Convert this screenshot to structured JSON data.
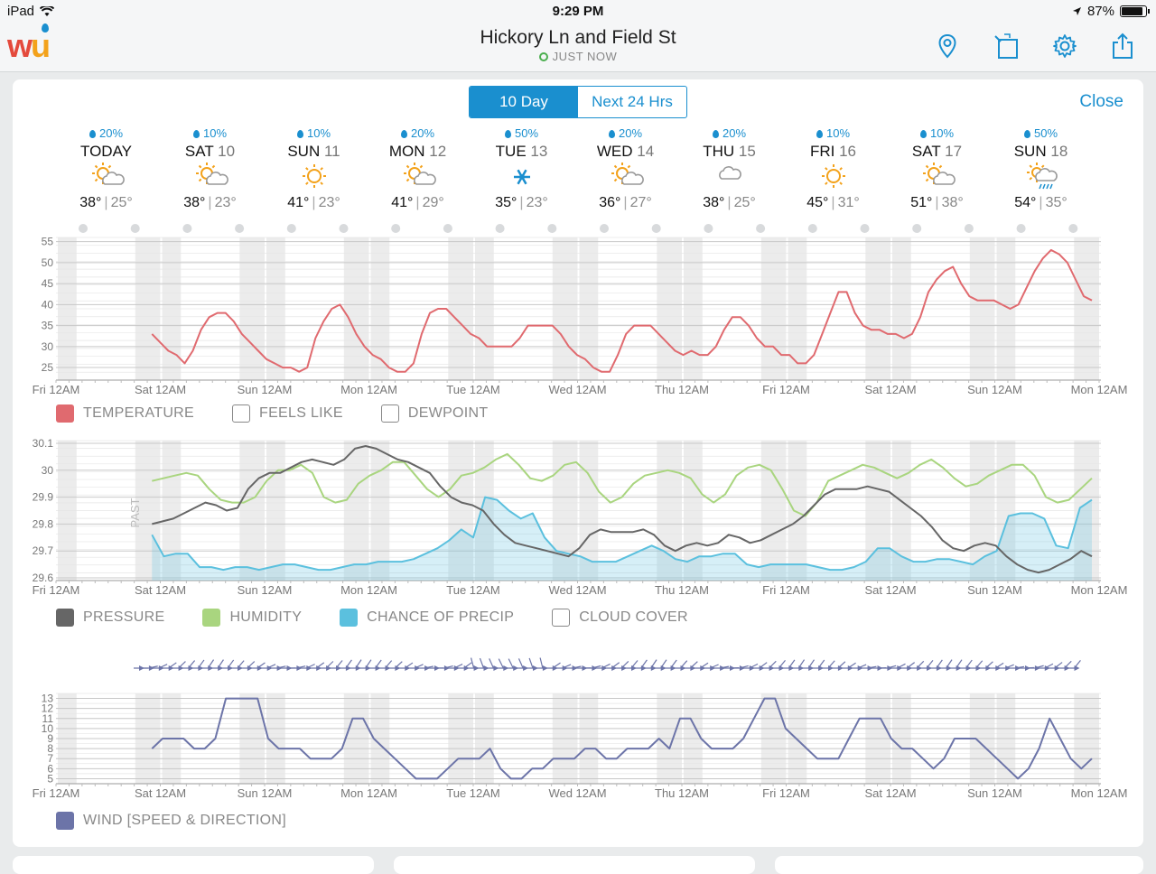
{
  "status": {
    "device": "iPad",
    "time": "9:29 PM",
    "battery": "87%",
    "battery_level": 0.87
  },
  "header": {
    "title": "Hickory Ln and Field St",
    "subtitle": "JUST NOW"
  },
  "toolbar": {
    "icons": [
      "location-pin-icon",
      "rotate-screen-icon",
      "gear-icon",
      "share-icon"
    ]
  },
  "tabs": [
    {
      "label": "10 Day",
      "active": true
    },
    {
      "label": "Next 24 Hrs",
      "active": false
    }
  ],
  "close_label": "Close",
  "forecast": [
    {
      "precip": "20%",
      "name": "TODAY",
      "num": "",
      "icon": "partly-sunny",
      "hi": "38°",
      "lo": "25°"
    },
    {
      "precip": "10%",
      "name": "SAT",
      "num": "10",
      "icon": "partly-sunny",
      "hi": "38°",
      "lo": "23°"
    },
    {
      "precip": "10%",
      "name": "SUN",
      "num": "11",
      "icon": "sunny",
      "hi": "41°",
      "lo": "23°"
    },
    {
      "precip": "20%",
      "name": "MON",
      "num": "12",
      "icon": "partly-sunny",
      "hi": "41°",
      "lo": "29°"
    },
    {
      "precip": "50%",
      "name": "TUE",
      "num": "13",
      "icon": "snow",
      "hi": "35°",
      "lo": "23°"
    },
    {
      "precip": "20%",
      "name": "WED",
      "num": "14",
      "icon": "partly-sunny",
      "hi": "36°",
      "lo": "27°"
    },
    {
      "precip": "20%",
      "name": "THU",
      "num": "15",
      "icon": "cloudy",
      "hi": "38°",
      "lo": "25°"
    },
    {
      "precip": "10%",
      "name": "FRI",
      "num": "16",
      "icon": "sunny",
      "hi": "45°",
      "lo": "31°"
    },
    {
      "precip": "10%",
      "name": "SAT",
      "num": "17",
      "icon": "partly-sunny",
      "hi": "51°",
      "lo": "38°"
    },
    {
      "precip": "50%",
      "name": "SUN",
      "num": "18",
      "icon": "chance-rain",
      "hi": "54°",
      "lo": "35°"
    }
  ],
  "x_labels": [
    "Fri 12AM",
    "Sat 12AM",
    "Sun 12AM",
    "Mon 12AM",
    "Tue 12AM",
    "Wed 12AM",
    "Thu 12AM",
    "Fri 12AM",
    "Sat 12AM",
    "Sun 12AM",
    "Mon 12AM"
  ],
  "past_label": "PAST",
  "colors": {
    "accent": "#1a8fcf",
    "temperature": "#e06a6f",
    "pressure": "#666666",
    "humidity": "#a9d57f",
    "precip": "#5bc0de",
    "wind": "#6c74a8"
  },
  "legends": {
    "temp": [
      {
        "label": "TEMPERATURE",
        "checked": true,
        "color": "#e06a6f"
      },
      {
        "label": "FEELS LIKE",
        "checked": false
      },
      {
        "label": "DEWPOINT",
        "checked": false
      }
    ],
    "atmos": [
      {
        "label": "PRESSURE",
        "checked": true,
        "color": "#666666"
      },
      {
        "label": "HUMIDITY",
        "checked": true,
        "color": "#a9d57f"
      },
      {
        "label": "CHANCE OF PRECIP",
        "checked": true,
        "color": "#5bc0de"
      },
      {
        "label": "CLOUD COVER",
        "checked": false
      }
    ],
    "wind": [
      {
        "label": "WIND [SPEED & DIRECTION]",
        "checked": true,
        "color": "#6c74a8"
      }
    ]
  },
  "chart_data": [
    {
      "type": "line",
      "yticks": [
        25,
        30,
        35,
        40,
        45,
        50,
        55
      ],
      "ylim": [
        22,
        56
      ],
      "x_start": "Fri 12AM",
      "series": [
        {
          "name": "TEMPERATURE",
          "color": "#e06a6f",
          "values": [
            33,
            31,
            29,
            28,
            26,
            29,
            34,
            37,
            38,
            38,
            36,
            33,
            31,
            29,
            27,
            26,
            25,
            25,
            24,
            25,
            32,
            36,
            39,
            40,
            37,
            33,
            30,
            28,
            27,
            25,
            24,
            24,
            26,
            33,
            38,
            39,
            39,
            37,
            35,
            33,
            32,
            30,
            30,
            30,
            30,
            32,
            35,
            35,
            35,
            35,
            33,
            30,
            28,
            27,
            25,
            24,
            24,
            28,
            33,
            35,
            35,
            35,
            33,
            31,
            29,
            28,
            29,
            28,
            28,
            30,
            34,
            37,
            37,
            35,
            32,
            30,
            30,
            28,
            28,
            26,
            26,
            28,
            33,
            38,
            43,
            43,
            38,
            35,
            34,
            34,
            33,
            33,
            32,
            33,
            37,
            43,
            46,
            48,
            49,
            45,
            42,
            41,
            41,
            41,
            40,
            39,
            40,
            44,
            48,
            51,
            53,
            52,
            50,
            46,
            42,
            41
          ]
        }
      ]
    },
    {
      "type": "line",
      "yticks": [
        29.6,
        29.7,
        29.8,
        29.9,
        30,
        30.1
      ],
      "ylim": [
        29.59,
        30.11
      ],
      "series": [
        {
          "name": "PRESSURE",
          "color": "#666666",
          "values": [
            29.8,
            29.81,
            29.82,
            29.84,
            29.86,
            29.88,
            29.87,
            29.85,
            29.86,
            29.93,
            29.97,
            29.99,
            29.99,
            30.01,
            30.03,
            30.04,
            30.03,
            30.02,
            30.04,
            30.08,
            30.09,
            30.08,
            30.06,
            30.04,
            30.03,
            30.01,
            29.99,
            29.94,
            29.9,
            29.88,
            29.87,
            29.85,
            29.8,
            29.76,
            29.73,
            29.72,
            29.71,
            29.7,
            29.69,
            29.68,
            29.71,
            29.76,
            29.78,
            29.77,
            29.77,
            29.77,
            29.78,
            29.76,
            29.72,
            29.7,
            29.72,
            29.73,
            29.72,
            29.73,
            29.76,
            29.75,
            29.73,
            29.74,
            29.76,
            29.78,
            29.8,
            29.83,
            29.87,
            29.91,
            29.93,
            29.93,
            29.93,
            29.94,
            29.93,
            29.92,
            29.89,
            29.86,
            29.83,
            29.79,
            29.74,
            29.71,
            29.7,
            29.72,
            29.73,
            29.72,
            29.68,
            29.65,
            29.63,
            29.62,
            29.63,
            29.65,
            29.67,
            29.7,
            29.68
          ]
        },
        {
          "name": "HUMIDITY",
          "color": "#a9d57f",
          "values": [
            29.96,
            29.97,
            29.98,
            29.99,
            29.98,
            29.93,
            29.89,
            29.88,
            29.88,
            29.9,
            29.96,
            30.0,
            30.0,
            30.02,
            29.99,
            29.9,
            29.88,
            29.89,
            29.95,
            29.98,
            30.0,
            30.03,
            30.03,
            29.98,
            29.93,
            29.9,
            29.93,
            29.98,
            29.99,
            30.01,
            30.04,
            30.06,
            30.02,
            29.97,
            29.96,
            29.98,
            30.02,
            30.03,
            29.99,
            29.92,
            29.88,
            29.9,
            29.95,
            29.98,
            29.99,
            30.0,
            29.99,
            29.97,
            29.91,
            29.88,
            29.91,
            29.98,
            30.01,
            30.02,
            30.0,
            29.93,
            29.85,
            29.83,
            29.88,
            29.96,
            29.98,
            30.0,
            30.02,
            30.01,
            29.99,
            29.97,
            29.99,
            30.02,
            30.04,
            30.01,
            29.97,
            29.94,
            29.95,
            29.98,
            30.0,
            30.02,
            30.02,
            29.98,
            29.9,
            29.88,
            29.89,
            29.93,
            29.97
          ]
        },
        {
          "name": "CHANCE OF PRECIP",
          "color": "#5bc0de",
          "values": [
            29.76,
            29.68,
            29.69,
            29.69,
            29.64,
            29.64,
            29.63,
            29.64,
            29.64,
            29.63,
            29.64,
            29.65,
            29.65,
            29.64,
            29.63,
            29.63,
            29.64,
            29.65,
            29.65,
            29.66,
            29.66,
            29.66,
            29.67,
            29.69,
            29.71,
            29.74,
            29.78,
            29.75,
            29.9,
            29.89,
            29.85,
            29.82,
            29.84,
            29.75,
            29.7,
            29.69,
            29.68,
            29.66,
            29.66,
            29.66,
            29.68,
            29.7,
            29.72,
            29.7,
            29.67,
            29.66,
            29.68,
            29.68,
            29.69,
            29.69,
            29.65,
            29.64,
            29.65,
            29.65,
            29.65,
            29.65,
            29.64,
            29.63,
            29.63,
            29.64,
            29.66,
            29.71,
            29.71,
            29.68,
            29.66,
            29.66,
            29.67,
            29.67,
            29.66,
            29.65,
            29.68,
            29.7,
            29.83,
            29.84,
            29.84,
            29.82,
            29.72,
            29.71,
            29.86,
            29.89
          ]
        }
      ]
    },
    {
      "type": "line",
      "yticks": [
        5,
        6,
        7,
        8,
        9,
        10,
        11,
        12,
        13
      ],
      "ylim": [
        4.5,
        13.5
      ],
      "series": [
        {
          "name": "WIND",
          "color": "#6c74a8",
          "values": [
            8,
            9,
            9,
            9,
            8,
            8,
            9,
            13,
            13,
            13,
            13,
            9,
            8,
            8,
            8,
            7,
            7,
            7,
            8,
            11,
            11,
            9,
            8,
            7,
            6,
            5,
            5,
            5,
            6,
            7,
            7,
            7,
            8,
            6,
            5,
            5,
            6,
            6,
            7,
            7,
            7,
            8,
            8,
            7,
            7,
            8,
            8,
            8,
            9,
            8,
            11,
            11,
            9,
            8,
            8,
            8,
            9,
            11,
            13,
            13,
            10,
            9,
            8,
            7,
            7,
            7,
            9,
            11,
            11,
            11,
            9,
            8,
            8,
            7,
            6,
            7,
            9,
            9,
            9,
            8,
            7,
            6,
            5,
            6,
            8,
            11,
            9,
            7,
            6,
            7
          ]
        }
      ]
    }
  ]
}
